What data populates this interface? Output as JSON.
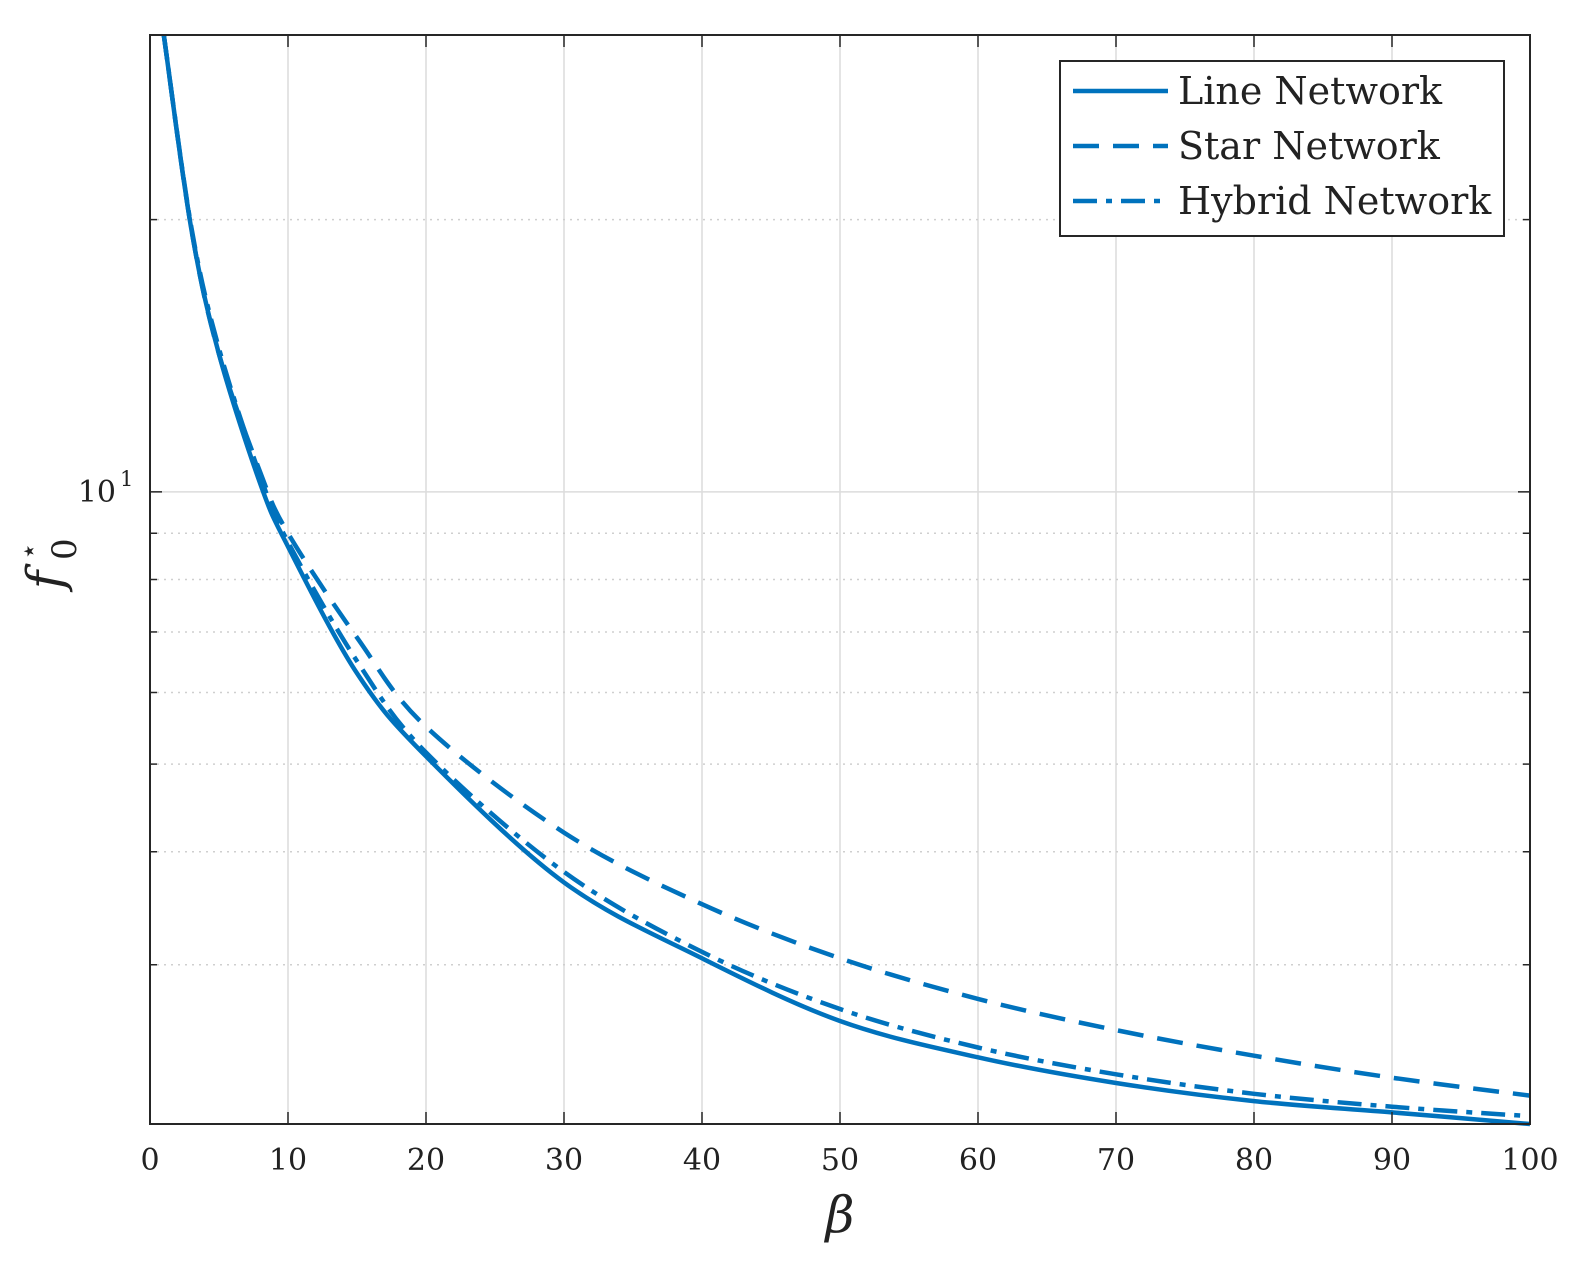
{
  "chart_data": {
    "type": "line",
    "xlabel": "β",
    "ylabel_main": "f",
    "ylabel_sup": "⋆",
    "ylabel_sub": "0",
    "xlim": [
      0,
      100
    ],
    "ylim": [
      2,
      32
    ],
    "yscale": "log",
    "grid": true,
    "legend_position": "top-right",
    "x_ticks": [
      0,
      10,
      20,
      30,
      40,
      50,
      60,
      70,
      80,
      90,
      100
    ],
    "x_tick_labels": [
      "0",
      "10",
      "20",
      "30",
      "40",
      "50",
      "60",
      "70",
      "80",
      "90",
      "100"
    ],
    "y_major_tick": 10,
    "y_major_label_base": "10",
    "y_major_label_exp": "1",
    "y_minor_ticks": [
      3,
      4,
      5,
      6,
      7,
      8,
      9,
      20
    ],
    "line_color": "#0072BD",
    "series": [
      {
        "name": "Line Network",
        "style": "solid",
        "x": [
          1,
          3,
          5,
          8,
          10,
          15,
          20,
          30,
          40,
          50,
          60,
          70,
          80,
          90,
          100
        ],
        "y": [
          32,
          19.5,
          14.2,
          10.2,
          8.7,
          6.3,
          5.1,
          3.7,
          3.05,
          2.6,
          2.37,
          2.22,
          2.12,
          2.06,
          2.0
        ]
      },
      {
        "name": "Star Network",
        "style": "dashed",
        "x": [
          1,
          3,
          5,
          8,
          10,
          15,
          20,
          30,
          40,
          50,
          60,
          70,
          80,
          90,
          100
        ],
        "y": [
          32,
          19.5,
          14.2,
          10.5,
          9.0,
          6.9,
          5.5,
          4.2,
          3.5,
          3.05,
          2.75,
          2.54,
          2.38,
          2.25,
          2.15
        ]
      },
      {
        "name": "Hybrid Network",
        "style": "dashdot",
        "x": [
          1,
          3,
          5,
          8,
          10,
          15,
          20,
          30,
          40,
          50,
          60,
          70,
          80,
          90,
          100
        ],
        "y": [
          32,
          19.6,
          14.4,
          10.4,
          8.8,
          6.5,
          5.15,
          3.8,
          3.1,
          2.68,
          2.43,
          2.27,
          2.16,
          2.09,
          2.04
        ]
      }
    ]
  }
}
